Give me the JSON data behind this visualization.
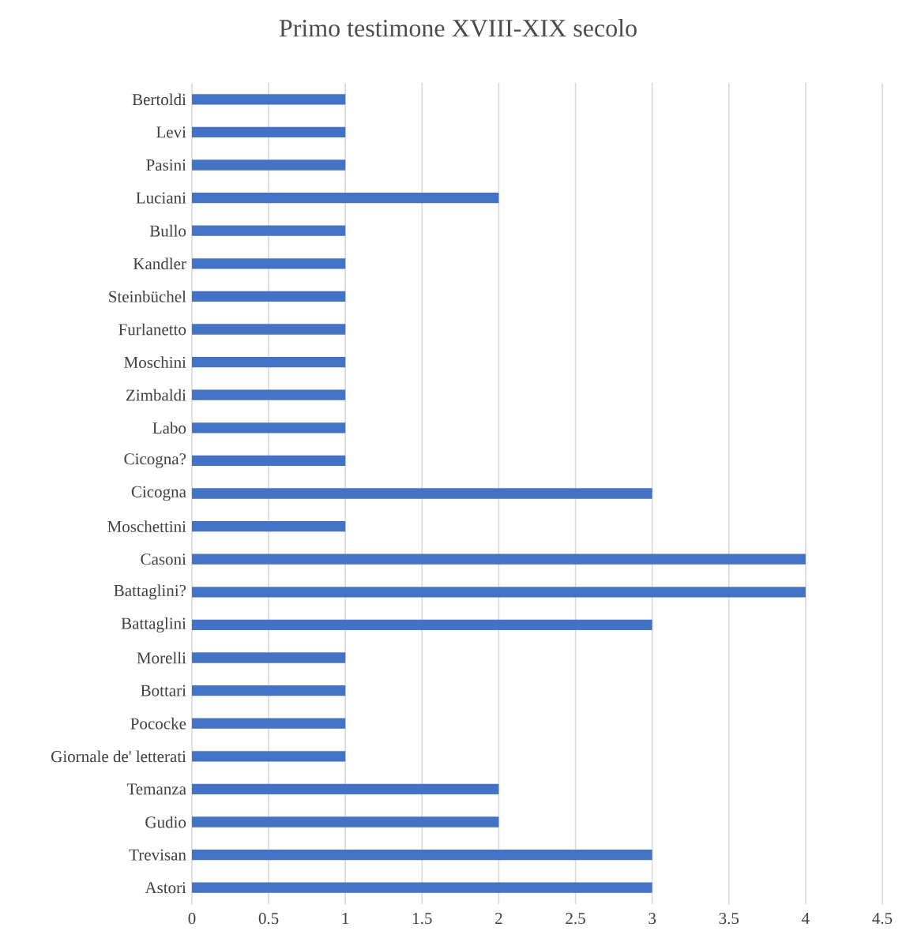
{
  "chart_data": {
    "type": "bar",
    "orientation": "horizontal",
    "title": "Primo testimone XVIII-XIX secolo",
    "categories": [
      "Bertoldi",
      "Levi",
      "Pasini",
      "Luciani",
      "Bullo",
      "Kandler",
      "Steinbüchel",
      "Furlanetto",
      "Moschini",
      "Zimbaldi",
      "Labo",
      "Cicogna?",
      "Cicogna",
      "Moschettini",
      "Casoni",
      "Battaglini?",
      "Battaglini",
      "Morelli",
      "Bottari",
      "Pococke",
      "Giornale de' letterati",
      "Temanza",
      "Gudio",
      "Trevisan",
      "Astori"
    ],
    "values": [
      1,
      1,
      1,
      2,
      1,
      1,
      1,
      1,
      1,
      1,
      1,
      1,
      3,
      1,
      4,
      4,
      3,
      1,
      1,
      1,
      1,
      2,
      2,
      3,
      3
    ],
    "color": "#4472c4",
    "xlim": [
      0,
      4.5
    ],
    "xticks": [
      0,
      0.5,
      1,
      1.5,
      2,
      2.5,
      3,
      3.5,
      4,
      4.5
    ],
    "grid": "x"
  }
}
